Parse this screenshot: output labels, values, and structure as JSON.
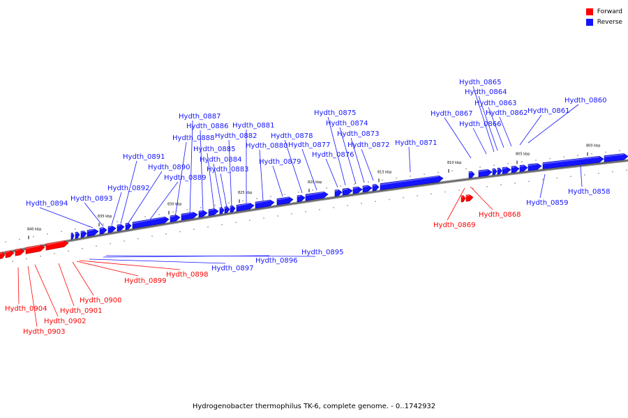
{
  "legend": {
    "forward_label": "Forward",
    "reverse_label": "Reverse",
    "forward_color": "#ff0000",
    "reverse_color": "#1414ff"
  },
  "caption": "Hydrogenobacter thermophilus TK-6, complete genome. - 0..1742932",
  "track": {
    "start_kbp": 800,
    "end_kbp": 840,
    "tick_labels": [
      "800 kbp",
      "805 kbp",
      "810 kbp",
      "815 kbp",
      "820 kbp",
      "825 kbp",
      "830 kbp",
      "835 kbp",
      "840 kbp"
    ]
  },
  "genes": [
    {
      "name": "Hydth_0860",
      "strand": "reverse"
    },
    {
      "name": "Hydth_0861",
      "strand": "reverse"
    },
    {
      "name": "Hydth_0862",
      "strand": "reverse"
    },
    {
      "name": "Hydth_0863",
      "strand": "reverse"
    },
    {
      "name": "Hydth_0864",
      "strand": "reverse"
    },
    {
      "name": "Hydth_0865",
      "strand": "reverse"
    },
    {
      "name": "Hydth_0866",
      "strand": "reverse"
    },
    {
      "name": "Hydth_0867",
      "strand": "reverse"
    },
    {
      "name": "Hydth_0868",
      "strand": "forward"
    },
    {
      "name": "Hydth_0869",
      "strand": "forward"
    },
    {
      "name": "Hydth_0858",
      "strand": "reverse"
    },
    {
      "name": "Hydth_0859",
      "strand": "reverse"
    },
    {
      "name": "Hydth_0871",
      "strand": "reverse"
    },
    {
      "name": "Hydth_0872",
      "strand": "reverse"
    },
    {
      "name": "Hydth_0873",
      "strand": "reverse"
    },
    {
      "name": "Hydth_0874",
      "strand": "reverse"
    },
    {
      "name": "Hydth_0875",
      "strand": "reverse"
    },
    {
      "name": "Hydth_0876",
      "strand": "reverse"
    },
    {
      "name": "Hydth_0877",
      "strand": "reverse"
    },
    {
      "name": "Hydth_0878",
      "strand": "reverse"
    },
    {
      "name": "Hydth_0879",
      "strand": "reverse"
    },
    {
      "name": "Hydth_0880",
      "strand": "reverse"
    },
    {
      "name": "Hydth_0881",
      "strand": "reverse"
    },
    {
      "name": "Hydth_0882",
      "strand": "reverse"
    },
    {
      "name": "Hydth_0883",
      "strand": "reverse"
    },
    {
      "name": "Hydth_0884",
      "strand": "reverse"
    },
    {
      "name": "Hydth_0885",
      "strand": "reverse"
    },
    {
      "name": "Hydth_0886",
      "strand": "reverse"
    },
    {
      "name": "Hydth_0887",
      "strand": "reverse"
    },
    {
      "name": "Hydth_0888",
      "strand": "reverse"
    },
    {
      "name": "Hydth_0889",
      "strand": "reverse"
    },
    {
      "name": "Hydth_0890",
      "strand": "reverse"
    },
    {
      "name": "Hydth_0891",
      "strand": "reverse"
    },
    {
      "name": "Hydth_0892",
      "strand": "reverse"
    },
    {
      "name": "Hydth_0893",
      "strand": "reverse"
    },
    {
      "name": "Hydth_0894",
      "strand": "reverse"
    },
    {
      "name": "Hydth_0895",
      "strand": "reverse"
    },
    {
      "name": "Hydth_0896",
      "strand": "reverse"
    },
    {
      "name": "Hydth_0897",
      "strand": "reverse"
    },
    {
      "name": "Hydth_0898",
      "strand": "forward"
    },
    {
      "name": "Hydth_0899",
      "strand": "forward"
    },
    {
      "name": "Hydth_0900",
      "strand": "forward"
    },
    {
      "name": "Hydth_0901",
      "strand": "forward"
    },
    {
      "name": "Hydth_0902",
      "strand": "forward"
    },
    {
      "name": "Hydth_0903",
      "strand": "forward"
    },
    {
      "name": "Hydth_0904",
      "strand": "forward"
    }
  ]
}
